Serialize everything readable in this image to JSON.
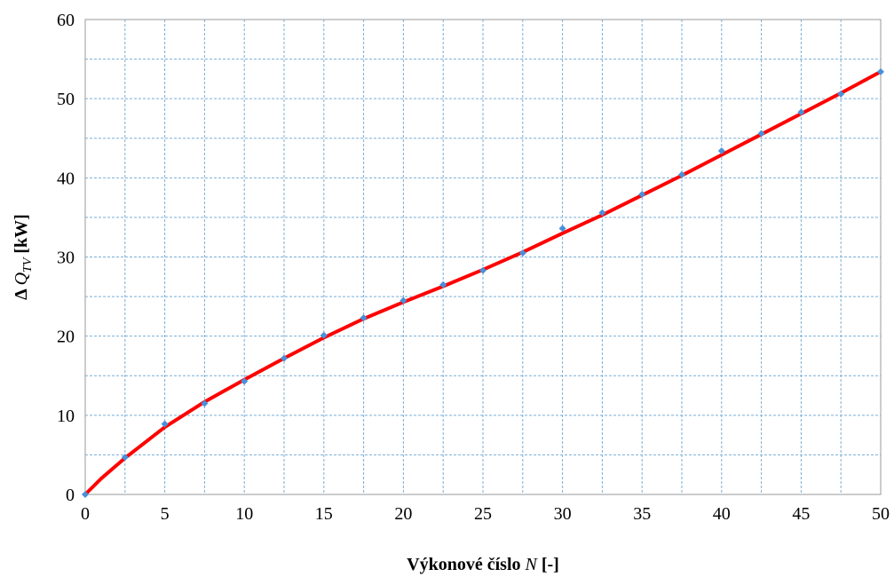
{
  "chart_data": {
    "type": "scatter",
    "xlabel": {
      "prefix": "Výkonové číslo ",
      "symbol": "N",
      "unit": " [-]"
    },
    "ylabel": {
      "prefix": "Δ ",
      "symbol": "Q",
      "subscript": "TV",
      "unit": " [kW]"
    },
    "xlim": [
      0,
      50
    ],
    "ylim": [
      0,
      60
    ],
    "x_ticks": [
      0,
      5,
      10,
      15,
      20,
      25,
      30,
      35,
      40,
      45,
      50
    ],
    "y_ticks": [
      0,
      10,
      20,
      30,
      40,
      50,
      60
    ],
    "grid": true,
    "series": [
      {
        "kind": "points",
        "color": "#4a90d9",
        "x": [
          0,
          2.5,
          5,
          7.5,
          10,
          12.5,
          15,
          17.5,
          20,
          22.5,
          25,
          27.5,
          30,
          32.5,
          35,
          37.5,
          40,
          42.5,
          45,
          47.5,
          50
        ],
        "y": [
          0,
          4.7,
          8.9,
          11.5,
          14.3,
          17.2,
          20.1,
          22.3,
          24.5,
          26.5,
          28.3,
          30.5,
          33.6,
          35.6,
          37.9,
          40.4,
          43.4,
          45.6,
          48.3,
          50.6,
          53.4
        ]
      },
      {
        "kind": "line",
        "color": "#ff0000",
        "x": [
          0,
          1,
          2.5,
          5,
          7.5,
          10,
          12.5,
          15,
          17.5,
          20,
          22.5,
          25,
          27.5,
          30,
          32.5,
          35,
          37.5,
          40,
          42.5,
          45,
          47.5,
          50
        ],
        "y": [
          0,
          2.0,
          4.6,
          8.5,
          11.7,
          14.5,
          17.2,
          19.8,
          22.2,
          24.3,
          26.3,
          28.4,
          30.6,
          33.0,
          35.3,
          37.8,
          40.3,
          42.9,
          45.5,
          48.1,
          50.7,
          53.4
        ]
      }
    ]
  }
}
